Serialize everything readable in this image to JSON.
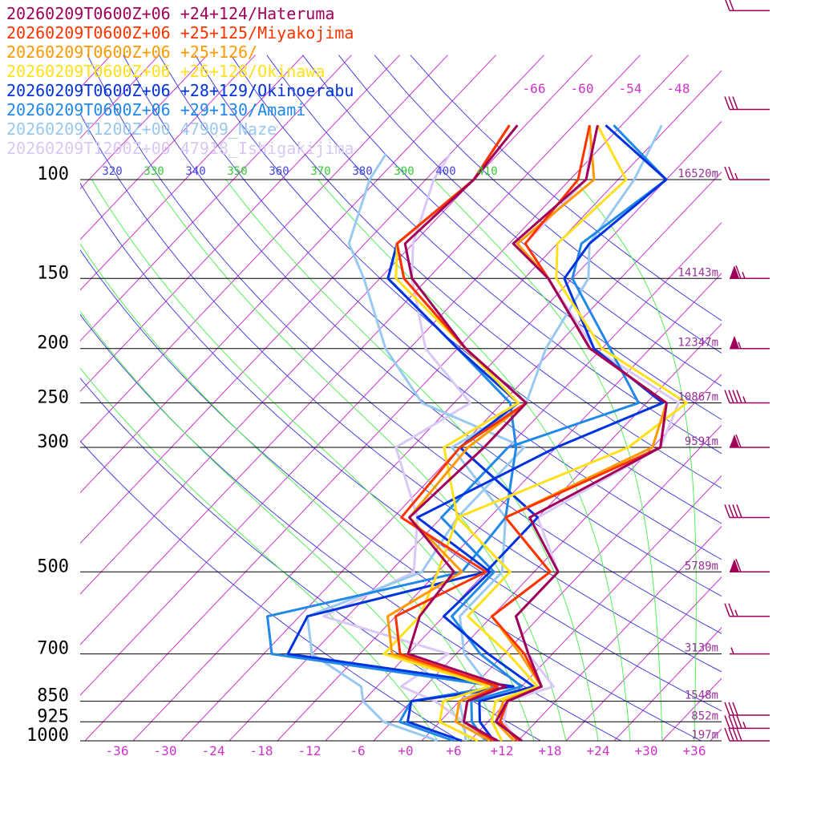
{
  "chart_data": {
    "type": "line",
    "title": "",
    "xlabel": "",
    "ylabel": "",
    "x_axis_kind": "skewed temperature (°C)",
    "y_axis_kind": "log pressure (hPa)",
    "xlim": [
      -40,
      40
    ],
    "ylim": [
      1000,
      100
    ],
    "grid": true,
    "legend_placement": "top-left",
    "pressure_levels": [
      {
        "label": "100",
        "p": 100,
        "height": "16520m"
      },
      {
        "label": "150",
        "p": 150,
        "height": "14143m"
      },
      {
        "label": "200",
        "p": 200,
        "height": "12347m"
      },
      {
        "label": "250",
        "p": 250,
        "height": "10867m"
      },
      {
        "label": "300",
        "p": 300,
        "height": "9591m"
      },
      {
        "label": "500",
        "p": 500,
        "height": "5789m"
      },
      {
        "label": "700",
        "p": 700,
        "height": "3130m"
      },
      {
        "label": "850",
        "p": 850,
        "height": "1548m"
      },
      {
        "label": "925",
        "p": 925,
        "height": "852m"
      },
      {
        "label": "1000",
        "p": 1000,
        "height": "197m"
      }
    ],
    "temperature_ticks": [
      "-36",
      "-30",
      "-24",
      "-18",
      "-12",
      "-6",
      "+0",
      "+6",
      "+12",
      "+18",
      "+24",
      "+30",
      "+36"
    ],
    "temperature_tick_values": [
      -36,
      -30,
      -24,
      -18,
      -12,
      -6,
      0,
      6,
      12,
      18,
      24,
      30,
      36
    ],
    "theta_labels": [
      {
        "label": "320",
        "kind": "dry"
      },
      {
        "label": "330",
        "kind": "moist"
      },
      {
        "label": "340",
        "kind": "dry"
      },
      {
        "label": "350",
        "kind": "moist"
      },
      {
        "label": "360",
        "kind": "dry"
      },
      {
        "label": "370",
        "kind": "moist"
      },
      {
        "label": "380",
        "kind": "dry"
      },
      {
        "label": "390",
        "kind": "moist"
      },
      {
        "label": "400",
        "kind": "dry"
      },
      {
        "label": "410",
        "kind": "moist"
      }
    ],
    "upper_temperature_labels": [
      "-66",
      "-60",
      "-54",
      "-48"
    ],
    "series": [
      {
        "name": "20260209T0600Z+06 +24+124/Hateruma",
        "color": "#a0005a",
        "temperature": [
          [
            1000,
            14.5
          ],
          [
            925,
            9
          ],
          [
            850,
            8
          ],
          [
            800,
            10.5
          ],
          [
            700,
            5
          ],
          [
            600,
            -1
          ],
          [
            500,
            -1
          ],
          [
            400,
            -11
          ],
          [
            300,
            -3
          ],
          [
            250,
            -7.5
          ],
          [
            200,
            -23.5
          ],
          [
            150,
            -37
          ],
          [
            130,
            -45.5
          ],
          [
            100,
            -44
          ],
          [
            80,
            -49
          ]
        ],
        "dewpoint": [
          [
            1000,
            11.5
          ],
          [
            925,
            5
          ],
          [
            850,
            3
          ],
          [
            800,
            6
          ],
          [
            700,
            -10
          ],
          [
            600,
            -13
          ],
          [
            500,
            -14
          ],
          [
            400,
            -26
          ],
          [
            300,
            -25
          ],
          [
            250,
            -25
          ],
          [
            200,
            -39
          ],
          [
            150,
            -54
          ],
          [
            130,
            -59
          ],
          [
            100,
            -58
          ],
          [
            80,
            -59
          ]
        ]
      },
      {
        "name": "20260209T0600Z+06 +25+125/Miyakojima",
        "color": "#ff3300",
        "temperature": [
          [
            1000,
            14
          ],
          [
            925,
            9.5
          ],
          [
            850,
            8
          ],
          [
            800,
            10.5
          ],
          [
            700,
            4.5
          ],
          [
            600,
            -4
          ],
          [
            500,
            -2
          ],
          [
            400,
            -14
          ],
          [
            300,
            -3
          ],
          [
            250,
            -7.5
          ],
          [
            200,
            -23.5
          ],
          [
            150,
            -37
          ],
          [
            130,
            -44
          ],
          [
            100,
            -45
          ],
          [
            80,
            -50
          ]
        ],
        "dewpoint": [
          [
            1000,
            11
          ],
          [
            925,
            5
          ],
          [
            850,
            3
          ],
          [
            800,
            5
          ],
          [
            700,
            -11
          ],
          [
            600,
            -16
          ],
          [
            500,
            -10
          ],
          [
            400,
            -27
          ],
          [
            300,
            -28
          ],
          [
            250,
            -25
          ],
          [
            200,
            -39
          ],
          [
            150,
            -55
          ],
          [
            130,
            -60
          ],
          [
            100,
            -58
          ],
          [
            80,
            -60
          ]
        ]
      },
      {
        "name": "20260209T0600Z+06 +25+126/",
        "color": "#ff9900",
        "temperature": [
          [
            1000,
            13.5
          ],
          [
            925,
            9
          ],
          [
            850,
            7.5
          ],
          [
            800,
            10.5
          ],
          [
            700,
            4
          ],
          [
            600,
            -4
          ],
          [
            500,
            -2
          ],
          [
            400,
            -14
          ],
          [
            300,
            -4
          ],
          [
            250,
            -7.5
          ],
          [
            200,
            -23.5
          ],
          [
            150,
            -37
          ],
          [
            130,
            -45
          ],
          [
            100,
            -43
          ],
          [
            80,
            -50
          ]
        ],
        "dewpoint": [
          [
            1000,
            10.5
          ],
          [
            925,
            4
          ],
          [
            850,
            2
          ],
          [
            800,
            5
          ],
          [
            700,
            -12
          ],
          [
            600,
            -17
          ],
          [
            500,
            -13
          ],
          [
            400,
            -26
          ],
          [
            300,
            -27
          ],
          [
            250,
            -25
          ],
          [
            200,
            -39
          ],
          [
            150,
            -55
          ],
          [
            130,
            -60
          ],
          [
            100,
            -58
          ],
          [
            80,
            -60
          ]
        ]
      },
      {
        "name": "20260209T0600Z+06 +26+128/Okinawa",
        "color": "#ffe01a",
        "temperature": [
          [
            1000,
            12
          ],
          [
            925,
            8.5
          ],
          [
            850,
            6.5
          ],
          [
            800,
            10
          ],
          [
            700,
            2.5
          ],
          [
            600,
            -7
          ],
          [
            500,
            -7
          ],
          [
            400,
            -20
          ],
          [
            300,
            -7
          ],
          [
            250,
            -5
          ],
          [
            200,
            -22
          ],
          [
            150,
            -36
          ],
          [
            130,
            -40
          ],
          [
            100,
            -39
          ],
          [
            80,
            -49
          ]
        ],
        "dewpoint": [
          [
            1000,
            9
          ],
          [
            925,
            2
          ],
          [
            850,
            0
          ],
          [
            800,
            4
          ],
          [
            700,
            -13
          ],
          [
            600,
            -13
          ],
          [
            500,
            -16
          ],
          [
            400,
            -20
          ],
          [
            300,
            -30
          ],
          [
            250,
            -26
          ],
          [
            200,
            -39
          ],
          [
            150,
            -56
          ],
          [
            130,
            -60
          ],
          [
            100,
            -58
          ],
          [
            80,
            -60
          ]
        ]
      },
      {
        "name": "20260209T0600Z+06 +28+129/Okinoerabu",
        "color": "#0033dd",
        "temperature": [
          [
            1000,
            11
          ],
          [
            925,
            7
          ],
          [
            850,
            4.5
          ],
          [
            800,
            9.5
          ],
          [
            700,
            0
          ],
          [
            600,
            -10
          ],
          [
            500,
            -9.5
          ],
          [
            400,
            -25
          ],
          [
            300,
            -16
          ],
          [
            250,
            -8
          ],
          [
            200,
            -23
          ],
          [
            150,
            -35
          ],
          [
            130,
            -36
          ],
          [
            100,
            -34
          ],
          [
            80,
            -48
          ]
        ],
        "dewpoint": [
          [
            1000,
            7
          ],
          [
            925,
            -2
          ],
          [
            850,
            -4
          ],
          [
            800,
            7
          ],
          [
            700,
            -25
          ],
          [
            600,
            -27
          ],
          [
            500,
            -10
          ],
          [
            400,
            -10
          ],
          [
            300,
            -28
          ],
          [
            250,
            -26
          ],
          [
            200,
            -40
          ],
          [
            150,
            -57
          ],
          [
            130,
            -60
          ],
          [
            100,
            -58
          ],
          [
            80,
            -60
          ]
        ]
      },
      {
        "name": "20260209T0600Z+06 +29+130/Amami",
        "color": "#1f88e8",
        "temperature": [
          [
            1000,
            10
          ],
          [
            925,
            6
          ],
          [
            850,
            3.5
          ],
          [
            800,
            8
          ],
          [
            700,
            -1
          ],
          [
            600,
            -9
          ],
          [
            500,
            -9
          ],
          [
            400,
            -22
          ],
          [
            300,
            -22
          ],
          [
            250,
            -11
          ],
          [
            200,
            -21
          ],
          [
            150,
            -34
          ],
          [
            130,
            -37
          ],
          [
            100,
            -34
          ],
          [
            80,
            -47
          ]
        ],
        "dewpoint": [
          [
            1000,
            6
          ],
          [
            925,
            -3
          ],
          [
            850,
            -4
          ],
          [
            800,
            5
          ],
          [
            700,
            -27
          ],
          [
            600,
            -32
          ],
          [
            500,
            -13
          ],
          [
            400,
            -14
          ],
          [
            300,
            -21
          ],
          [
            250,
            -27
          ],
          [
            200,
            -40
          ],
          [
            150,
            -57
          ],
          [
            130,
            -60
          ],
          [
            100,
            -58
          ],
          [
            80,
            -60
          ]
        ]
      },
      {
        "name": "20260209T1200Z+00 47909_Naze",
        "color": "#99c8f0",
        "temperature": [
          [
            1000,
            7.5
          ],
          [
            925,
            5
          ],
          [
            850,
            2
          ],
          [
            800,
            4
          ],
          [
            700,
            -3
          ],
          [
            600,
            -8
          ],
          [
            500,
            -8
          ],
          [
            400,
            -14
          ],
          [
            300,
            -29
          ],
          [
            250,
            -25
          ],
          [
            200,
            -29
          ],
          [
            150,
            -32
          ],
          [
            130,
            -36
          ],
          [
            100,
            -38
          ],
          [
            80,
            -41
          ]
        ],
        "dewpoint": [
          [
            1000,
            4
          ],
          [
            925,
            -5
          ],
          [
            850,
            -10
          ],
          [
            800,
            -12
          ],
          [
            700,
            -22
          ],
          [
            600,
            -27
          ],
          [
            500,
            -18
          ],
          [
            400,
            -20
          ],
          [
            300,
            -20
          ],
          [
            250,
            -38
          ],
          [
            200,
            -49
          ],
          [
            150,
            -60
          ],
          [
            130,
            -66
          ],
          [
            100,
            -71
          ],
          [
            90,
            -72
          ]
        ]
      },
      {
        "name": "20260209T1200Z+00 47918_Ishigakijima",
        "color": "#d9c8f5",
        "temperature": [
          [
            1000,
            14
          ],
          [
            925,
            10
          ],
          [
            850,
            8
          ],
          [
            800,
            12
          ],
          [
            700,
            5
          ],
          [
            600,
            -1
          ],
          [
            500,
            -1
          ],
          [
            400,
            -10
          ],
          [
            300,
            -3
          ],
          [
            250,
            -6
          ],
          [
            200,
            -23
          ],
          [
            150,
            -37
          ],
          [
            130,
            -44
          ],
          [
            100,
            -44
          ],
          [
            85,
            -48
          ]
        ],
        "dewpoint": [
          [
            1000,
            10
          ],
          [
            925,
            5
          ],
          [
            850,
            -1
          ],
          [
            800,
            -7
          ],
          [
            700,
            -5
          ],
          [
            600,
            -25
          ],
          [
            500,
            -19
          ],
          [
            400,
            -25
          ],
          [
            300,
            -36
          ],
          [
            250,
            -32
          ],
          [
            200,
            -44
          ],
          [
            150,
            -54
          ],
          [
            130,
            -58
          ],
          [
            100,
            -63
          ],
          [
            90,
            -64
          ]
        ]
      }
    ],
    "winds": [
      {
        "p": 1000,
        "speed_kt": 40,
        "dir": 240
      },
      {
        "p": 950,
        "speed_kt": 45,
        "dir": 240
      },
      {
        "p": 900,
        "speed_kt": 30,
        "dir": 240
      },
      {
        "p": 700,
        "speed_kt": 5,
        "dir": 270
      },
      {
        "p": 600,
        "speed_kt": 25,
        "dir": 270
      },
      {
        "p": 500,
        "speed_kt": 60,
        "dir": 270
      },
      {
        "p": 400,
        "speed_kt": 40,
        "dir": 270
      },
      {
        "p": 300,
        "speed_kt": 60,
        "dir": 260
      },
      {
        "p": 250,
        "speed_kt": 45,
        "dir": 265
      },
      {
        "p": 200,
        "speed_kt": 55,
        "dir": 270
      },
      {
        "p": 150,
        "speed_kt": 65,
        "dir": 265
      },
      {
        "p": 100,
        "speed_kt": 25,
        "dir": 260
      },
      {
        "p": 75,
        "speed_kt": 30,
        "dir": 255
      },
      {
        "p": 50,
        "speed_kt": 20,
        "dir": 250
      }
    ],
    "colors": {
      "isobar": "#000000",
      "isotherm": "#cc33cc",
      "dry_adiabat": "#4444dd",
      "moist_adiabat": "#55ee55",
      "height_label": "#993399",
      "pressure_label": "#000000",
      "wind_barb": "#a0005a"
    }
  }
}
